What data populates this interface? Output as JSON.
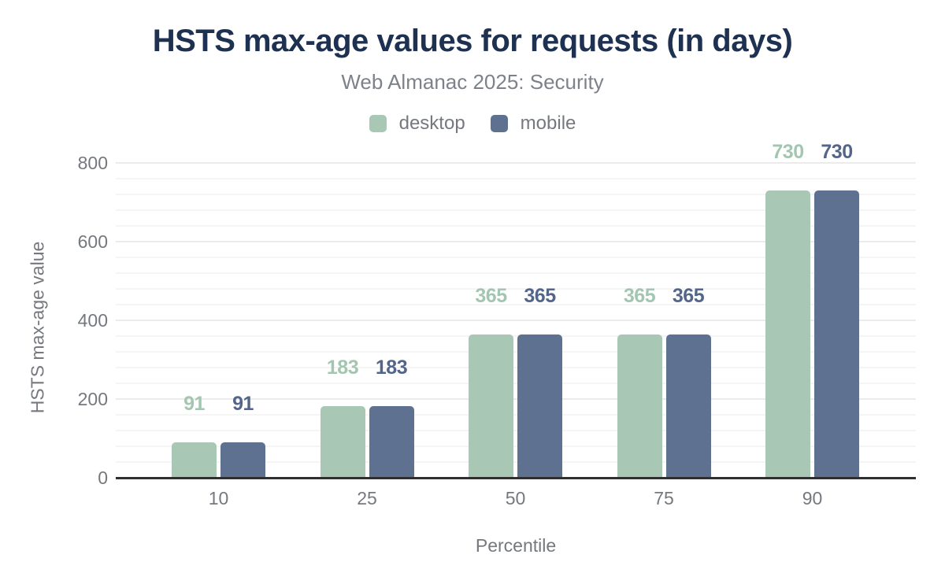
{
  "header": {
    "title": "HSTS max-age values for requests (in days)",
    "subtitle": "Web Almanac 2025: Security"
  },
  "legend": {
    "position": "top",
    "items": [
      {
        "label": "desktop",
        "color": "#a8c8b5"
      },
      {
        "label": "mobile",
        "color": "#5e7190"
      }
    ]
  },
  "chart_data": {
    "type": "bar",
    "title": "HSTS max-age values for requests (in days)",
    "subtitle": "Web Almanac 2025: Security",
    "categories": [
      "10",
      "25",
      "50",
      "75",
      "90"
    ],
    "series": [
      {
        "name": "desktop",
        "color": "#a8c8b5",
        "label_color": "#a3c6b1",
        "values": [
          91,
          183,
          365,
          365,
          730
        ]
      },
      {
        "name": "mobile",
        "color": "#5e7190",
        "label_color": "#536589",
        "values": [
          91,
          183,
          365,
          365,
          730
        ]
      }
    ],
    "xlabel": "Percentile",
    "ylabel": "HSTS max-age value",
    "ylim": [
      0,
      800
    ],
    "yticks": [
      0,
      200,
      400,
      600,
      800
    ],
    "minor_gridline_step": 40,
    "grid": true,
    "legend_position": "top",
    "bar_value_labels": true
  },
  "theme": {
    "title_color": "#1e3150",
    "subtitle_color": "#7d828a",
    "axis_text_color": "#75787d",
    "grid_minor_color": "#f5f5f5",
    "grid_major_color": "#ebebeb",
    "axis_line_color": "#2f2f2f",
    "background": "#ffffff"
  }
}
